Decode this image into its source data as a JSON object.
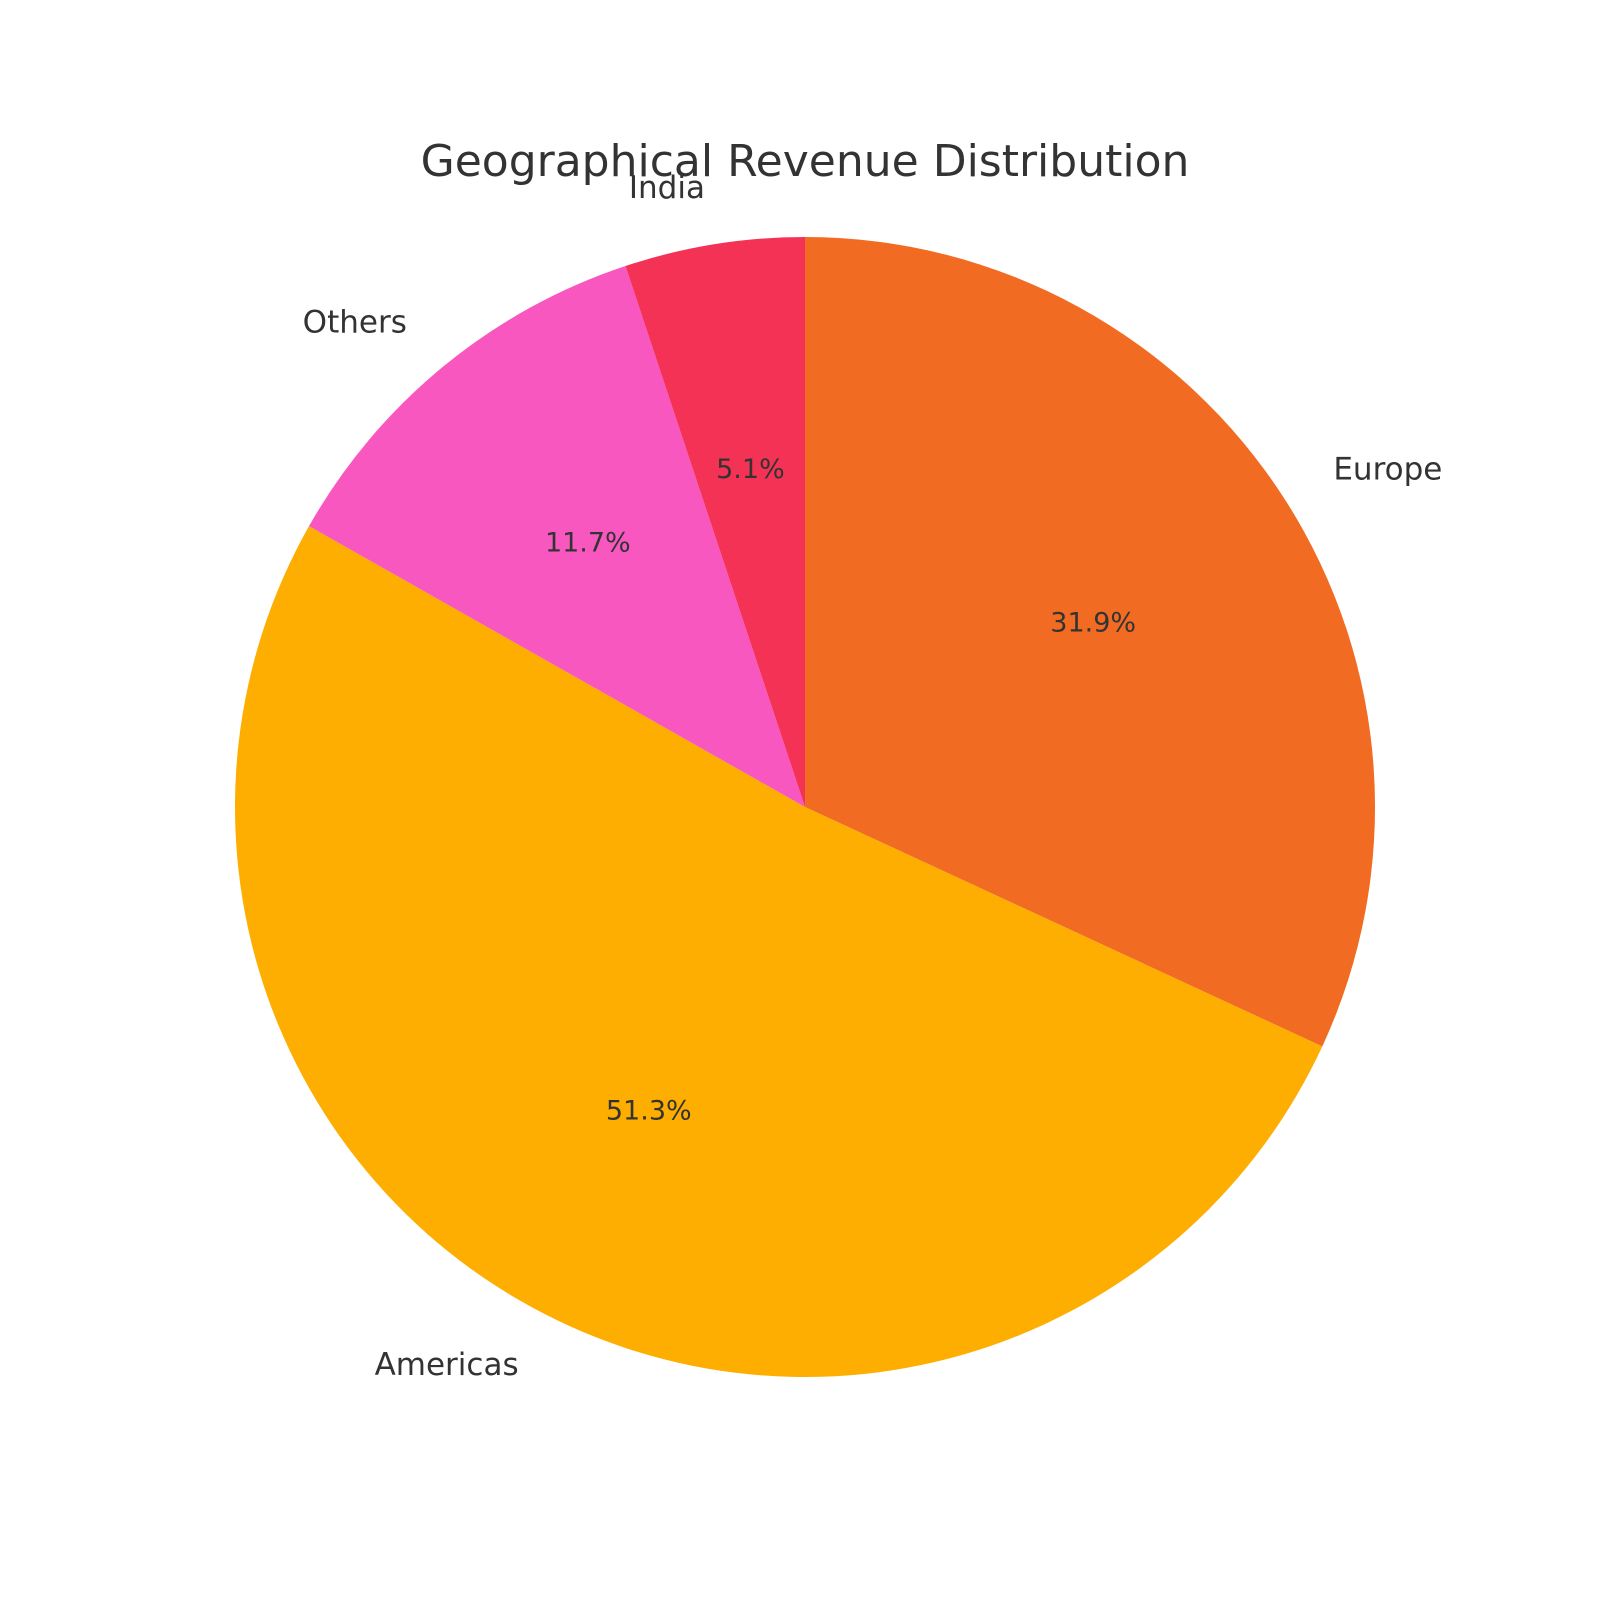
{
  "chart_data": {
    "type": "pie",
    "title": "Geographical Revenue Distribution",
    "start_angle_deg": 90,
    "direction": "clockwise",
    "slices": [
      {
        "label": "Europe",
        "value": 31.9,
        "pct_label": "31.9%",
        "color": "#f26b23"
      },
      {
        "label": "Americas",
        "value": 51.3,
        "pct_label": "51.3%",
        "color": "#fdae00"
      },
      {
        "label": "Others",
        "value": 11.7,
        "pct_label": "11.7%",
        "color": "#f857c0"
      },
      {
        "label": "India",
        "value": 5.1,
        "pct_label": "5.1%",
        "color": "#f43255"
      }
    ]
  }
}
